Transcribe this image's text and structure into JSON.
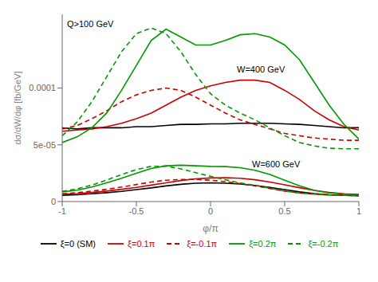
{
  "chart_data": {
    "type": "line",
    "xlabel": "φ/π",
    "ylabel": "dσ/dW/dφ [fb/GeV]",
    "annotations": [
      "Q>100 GeV",
      "W=400 GeV",
      "W=600 GeV"
    ],
    "x": [
      -1.0,
      -0.9,
      -0.8,
      -0.7,
      -0.6,
      -0.5,
      -0.4,
      -0.3,
      -0.2,
      -0.1,
      0.0,
      0.1,
      0.2,
      0.3,
      0.4,
      0.5,
      0.6,
      0.7,
      0.8,
      0.9,
      1.0
    ],
    "xlim": [
      -1,
      1
    ],
    "xticks": [
      -1,
      -0.5,
      0,
      0.5,
      1
    ],
    "ylim": [
      0,
      0.000165
    ],
    "yticks": [
      0,
      {
        "value": 5e-05,
        "label": "5e-05"
      },
      0.0001
    ],
    "grid": false,
    "legend": "bottom",
    "series": [
      {
        "name": "ξ=0 (SM)",
        "color": "#000000",
        "line_style": "solid",
        "values": [
          6.5e-05,
          6.4e-05,
          6.5e-05,
          6.5e-05,
          6.5e-05,
          6.6e-05,
          6.6e-05,
          6.7e-05,
          6.8e-05,
          6.8e-05,
          6.85e-05,
          6.85e-05,
          6.9e-05,
          6.9e-05,
          6.9e-05,
          6.85e-05,
          6.8e-05,
          6.7e-05,
          6.6e-05,
          6.5e-05,
          6.5e-05
        ]
      },
      {
        "name": "ξ=0.1π",
        "color": "#cc0000",
        "line_style": "solid",
        "values": [
          6.2e-05,
          6.3e-05,
          6.4e-05,
          6.6e-05,
          6.9e-05,
          7.3e-05,
          7.8e-05,
          8.5e-05,
          9.2e-05,
          9.8e-05,
          0.000102,
          0.000105,
          0.000107,
          0.000107,
          0.000105,
          9.8e-05,
          9e-05,
          8e-05,
          7.2e-05,
          6.6e-05,
          6.3e-05
        ]
      },
      {
        "name": "ξ=-0.1π",
        "color": "#cc0000",
        "line_style": "dashed",
        "values": [
          6.4e-05,
          6.7e-05,
          7.3e-05,
          8e-05,
          8.8e-05,
          9.4e-05,
          9.8e-05,
          0.0001,
          9.8e-05,
          9.2e-05,
          8.5e-05,
          7.8e-05,
          7.2e-05,
          6.8e-05,
          6.4e-05,
          6e-05,
          5.8e-05,
          5.6e-05,
          5.5e-05,
          5.4e-05,
          5.4e-05
        ]
      },
      {
        "name": "ξ=0.2π",
        "color": "#009900",
        "line_style": "solid",
        "values": [
          5.2e-05,
          5.7e-05,
          6.5e-05,
          7.8e-05,
          9.8e-05,
          0.00012,
          0.000142,
          0.000152,
          0.000145,
          0.000138,
          0.000138,
          0.000142,
          0.000147,
          0.000148,
          0.000145,
          0.000138,
          0.000125,
          0.000105,
          8.5e-05,
          6.8e-05,
          5.5e-05
        ]
      },
      {
        "name": "ξ=-0.2π",
        "color": "#009900",
        "line_style": "dashed",
        "values": [
          5.8e-05,
          7e-05,
          8.8e-05,
          0.00011,
          0.000132,
          0.000148,
          0.000153,
          0.000148,
          0.000132,
          0.000112,
          9.5e-05,
          8.5e-05,
          7.8e-05,
          7.2e-05,
          6.5e-05,
          5.8e-05,
          5.2e-05,
          4.9e-05,
          4.7e-05,
          4.65e-05,
          4.65e-05
        ]
      },
      {
        "name": "ξ=0 (SM)",
        "color": "#000000",
        "line_style": "solid",
        "values": [
          5.5e-06,
          6e-06,
          6.8e-06,
          7.8e-06,
          9e-06,
          1.05e-05,
          1.2e-05,
          1.38e-05,
          1.52e-05,
          1.62e-05,
          1.65e-05,
          1.62e-05,
          1.55e-05,
          1.42e-05,
          1.25e-05,
          1.05e-05,
          8.5e-06,
          7e-06,
          6e-06,
          5.5e-06,
          5.2e-06
        ]
      },
      {
        "name": "ξ=0.1π",
        "color": "#cc0000",
        "line_style": "solid",
        "values": [
          6.5e-06,
          7e-06,
          8e-06,
          9.2e-06,
          1.08e-05,
          1.25e-05,
          1.45e-05,
          1.65e-05,
          1.85e-05,
          2e-05,
          2.08e-05,
          2.1e-05,
          2.05e-05,
          1.92e-05,
          1.72e-05,
          1.48e-05,
          1.22e-05,
          9.8e-06,
          8e-06,
          6.8e-06,
          6.2e-06
        ]
      },
      {
        "name": "ξ=-0.1π",
        "color": "#cc0000",
        "line_style": "dashed",
        "values": [
          6.8e-06,
          7.8e-06,
          9.2e-06,
          1.08e-05,
          1.28e-05,
          1.5e-05,
          1.72e-05,
          1.88e-05,
          1.95e-05,
          1.95e-05,
          1.88e-05,
          1.75e-05,
          1.58e-05,
          1.38e-05,
          1.15e-05,
          9.2e-06,
          7.5e-06,
          6.5e-06,
          5.8e-06,
          5.5e-06,
          5.2e-06
        ]
      },
      {
        "name": "ξ=0.2π",
        "color": "#009900",
        "line_style": "solid",
        "values": [
          8.5e-06,
          1e-05,
          1.28e-05,
          1.65e-05,
          2.05e-05,
          2.5e-05,
          2.92e-05,
          3.15e-05,
          3.2e-05,
          3.15e-05,
          3.1e-05,
          3.08e-05,
          2.98e-05,
          2.75e-05,
          2.38e-05,
          1.88e-05,
          1.38e-05,
          9.8e-06,
          7.5e-06,
          6.5e-06,
          6e-06
        ]
      },
      {
        "name": "ξ=-0.2π",
        "color": "#009900",
        "line_style": "dashed",
        "values": [
          9e-06,
          1.12e-05,
          1.45e-05,
          1.9e-05,
          2.38e-05,
          2.82e-05,
          3.1e-05,
          3.12e-05,
          2.88e-05,
          2.55e-05,
          2.22e-05,
          1.92e-05,
          1.65e-05,
          1.42e-05,
          1.18e-05,
          9.2e-06,
          7.5e-06,
          6.5e-06,
          5.8e-06,
          5.5e-06,
          5.2e-06
        ]
      }
    ]
  }
}
